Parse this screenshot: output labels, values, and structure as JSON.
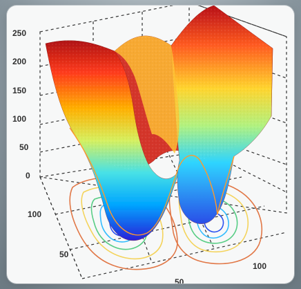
{
  "chart_data": {
    "type": "surface",
    "title": "",
    "xlabel": "",
    "ylabel": "",
    "zlabel": "",
    "zlim": [
      0,
      250
    ],
    "z_ticks": [
      "250",
      "200",
      "150",
      "100",
      "50",
      "0"
    ],
    "y_ticks": [
      "100",
      "50"
    ],
    "x_ticks": [
      "50",
      "100"
    ],
    "colormap": "jet",
    "grid": true,
    "surface_profile": {
      "x": [
        0,
        10,
        20,
        30,
        40,
        50,
        60,
        70,
        80,
        90,
        100,
        110,
        120
      ],
      "back_z": [
        235,
        218,
        205,
        235,
        255,
        258,
        248,
        260,
        255,
        238,
        236,
        225,
        220
      ],
      "front_z": [
        145,
        86,
        20,
        62,
        109,
        90,
        44,
        98,
        150,
        170,
        180,
        175,
        170
      ]
    },
    "contours": [
      {
        "level": 20,
        "color": "#1f4dff"
      },
      {
        "level": 60,
        "color": "#00b7ff"
      },
      {
        "level": 100,
        "color": "#6bd36b"
      },
      {
        "level": 150,
        "color": "#f3d34f"
      },
      {
        "level": 200,
        "color": "#f08236"
      }
    ]
  }
}
